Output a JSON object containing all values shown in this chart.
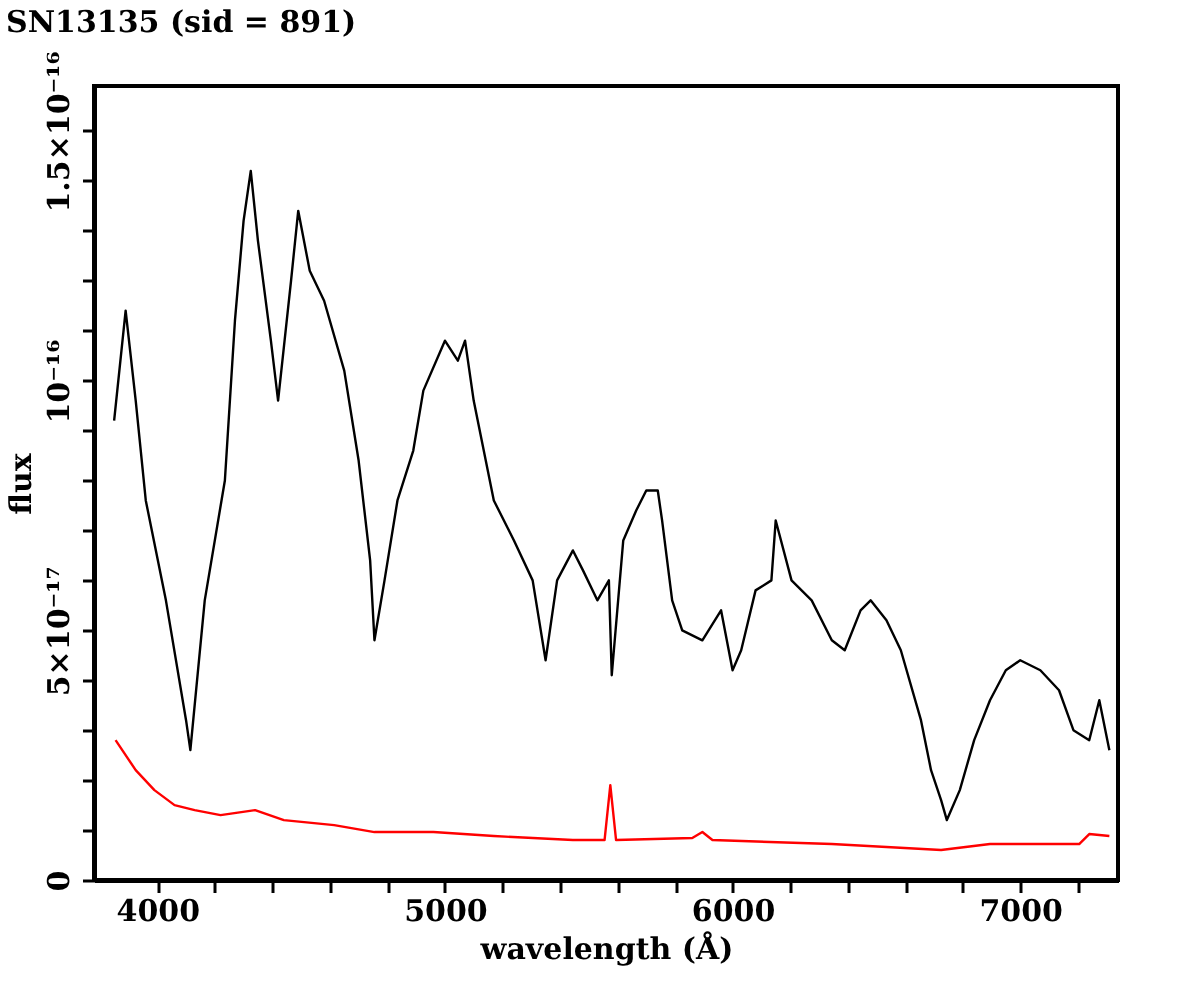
{
  "chart_data": {
    "type": "line",
    "title": "SN13135 (sid = 891)",
    "xlabel": "wavelength (Å)",
    "ylabel": "flux",
    "xlim": [
      3780,
      7340
    ],
    "ylim": [
      0,
      1.59e-16
    ],
    "xticks": [
      4000,
      {
        "value": 4200,
        "label": null
      },
      {
        "value": 4400,
        "label": null
      },
      {
        "value": 4600,
        "label": null
      },
      {
        "value": 4800,
        "label": null
      },
      5000,
      {
        "value": 5200,
        "label": null
      },
      {
        "value": 5400,
        "label": null
      },
      {
        "value": 5600,
        "label": null
      },
      {
        "value": 5800,
        "label": null
      },
      6000,
      {
        "value": 6200,
        "label": null
      },
      {
        "value": 6400,
        "label": null
      },
      {
        "value": 6600,
        "label": null
      },
      {
        "value": 6800,
        "label": null
      },
      7000,
      {
        "value": 7200,
        "label": null
      }
    ],
    "yticks": [
      0,
      {
        "value": 1e-17,
        "label": null
      },
      {
        "value": 2e-17,
        "label": null
      },
      {
        "value": 3e-17,
        "label": null
      },
      {
        "value": 4e-17,
        "label": null
      },
      {
        "value": 5e-17,
        "label": "5×10⁻¹⁷"
      },
      {
        "value": 6e-17,
        "label": null
      },
      {
        "value": 7e-17,
        "label": null
      },
      {
        "value": 8e-17,
        "label": null
      },
      {
        "value": 9e-17,
        "label": null
      },
      {
        "value": 1e-16,
        "label": "10⁻¹⁶"
      },
      {
        "value": 1.1e-16,
        "label": null
      },
      {
        "value": 1.2e-16,
        "label": null
      },
      {
        "value": 1.3e-16,
        "label": null
      },
      {
        "value": 1.4e-16,
        "label": null
      },
      {
        "value": 1.5e-16,
        "label": "1.5×10⁻¹⁶"
      }
    ],
    "grid": false,
    "line_style": "solid",
    "series": [
      {
        "color": "#000000",
        "x": [
          3850,
          3890,
          3925,
          3960,
          4030,
          4100,
          4115,
          4165,
          4235,
          4270,
          4300,
          4325,
          4350,
          4395,
          4420,
          4465,
          4490,
          4530,
          4580,
          4650,
          4700,
          4740,
          4755,
          4790,
          4835,
          4890,
          4925,
          5000,
          5045,
          5070,
          5100,
          5170,
          5240,
          5305,
          5350,
          5390,
          5445,
          5480,
          5530,
          5570,
          5580,
          5620,
          5665,
          5700,
          5740,
          5755,
          5790,
          5825,
          5895,
          5960,
          6000,
          6030,
          6080,
          6135,
          6150,
          6205,
          6275,
          6345,
          6390,
          6445,
          6480,
          6535,
          6585,
          6655,
          6690,
          6725,
          6745,
          6790,
          6840,
          6895,
          6950,
          7000,
          7070,
          7135,
          7185,
          7240,
          7275,
          7310
        ],
        "values": [
          9.2e-17,
          1.14e-16,
          9.6e-17,
          7.6e-17,
          5.6e-17,
          3.2e-17,
          2.6e-17,
          5.6e-17,
          8e-17,
          1.12e-16,
          1.32e-16,
          1.42e-16,
          1.28e-16,
          1.08e-16,
          9.6e-17,
          1.2e-16,
          1.34e-16,
          1.22e-16,
          1.16e-16,
          1.02e-16,
          8.4e-17,
          6.4e-17,
          4.8e-17,
          6e-17,
          7.6e-17,
          8.6e-17,
          9.8e-17,
          1.08e-16,
          1.04e-16,
          1.08e-16,
          9.6e-17,
          7.6e-17,
          6.8e-17,
          6e-17,
          4.4e-17,
          6e-17,
          6.6e-17,
          6.2e-17,
          5.6e-17,
          6e-17,
          4.1e-17,
          6.8e-17,
          7.4e-17,
          7.8e-17,
          7.8e-17,
          7.2e-17,
          5.6e-17,
          5e-17,
          4.8e-17,
          5.4e-17,
          4.2e-17,
          4.6e-17,
          5.8e-17,
          6e-17,
          7.2e-17,
          6e-17,
          5.6e-17,
          4.8e-17,
          4.6e-17,
          5.4e-17,
          5.6e-17,
          5.2e-17,
          4.6e-17,
          3.2e-17,
          2.2e-17,
          1.6e-17,
          1.2e-17,
          1.8e-17,
          2.8e-17,
          3.6e-17,
          4.2e-17,
          4.4e-17,
          4.2e-17,
          3.8e-17,
          3e-17,
          2.8e-17,
          3.6e-17,
          2.6e-17
        ]
      },
      {
        "color": "#ff0000",
        "x": [
          3855,
          3925,
          3990,
          4060,
          4130,
          4220,
          4340,
          4440,
          4615,
          4755,
          4960,
          5170,
          5445,
          5555,
          5575,
          5595,
          5860,
          5895,
          5930,
          6345,
          6725,
          6895,
          7205,
          7240,
          7310
        ],
        "values": [
          2.8e-17,
          2.2e-17,
          1.8e-17,
          1.5e-17,
          1.4e-17,
          1.3e-17,
          1.4e-17,
          1.2e-17,
          1.1e-17,
          9.6e-18,
          9.6e-18,
          8.8e-18,
          8e-18,
          8e-18,
          1.9e-17,
          8e-18,
          8.4e-18,
          9.6e-18,
          8e-18,
          7.2e-18,
          6e-18,
          7.2e-18,
          7.2e-18,
          9.2e-18,
          8.8e-18
        ]
      }
    ]
  }
}
